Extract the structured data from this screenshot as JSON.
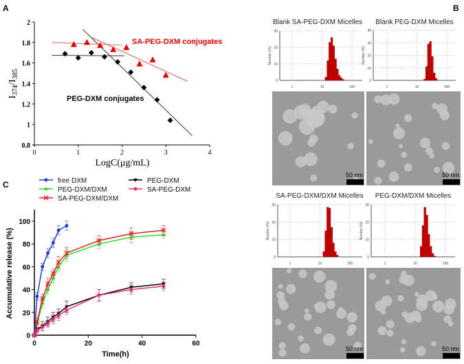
{
  "panel_labels": {
    "a": "A",
    "b": "B",
    "c": "C"
  },
  "chart_data": [
    {
      "id": "A",
      "type": "scatter",
      "xlabel": "LogC(μg/mL)",
      "ylabel_parts": [
        "I",
        "374",
        "/I",
        "385"
      ],
      "xlim": [
        0,
        4
      ],
      "ylim": [
        0.8,
        2
      ],
      "xticks": [
        "0",
        "1",
        "2",
        "3",
        "4"
      ],
      "yticks": [
        "0.8",
        "1",
        "1.2",
        "1.4",
        "1.6",
        "1.8",
        "2"
      ],
      "annotations": [
        "SA-PEG-DXM  conjugates",
        "PEG-DXM  conjugates"
      ],
      "series": [
        {
          "label_index": 1,
          "color": "#000000",
          "marker": "diamond",
          "x": [
            0.7,
            1.0,
            1.3,
            1.6,
            1.9,
            2.2,
            2.5,
            2.8,
            3.1
          ],
          "y": [
            1.69,
            1.65,
            1.7,
            1.66,
            1.61,
            1.51,
            1.36,
            1.24,
            1.04
          ],
          "fit_lines": [
            [
              [
                0.4,
                1.675
              ],
              [
                2.05,
                1.67
              ]
            ],
            [
              [
                1.1,
                1.93
              ],
              [
                3.6,
                0.89
              ]
            ]
          ],
          "line_color": "#333333"
        },
        {
          "label_index": 0,
          "color": "#e00000",
          "marker": "triangle",
          "x": [
            0.9,
            1.2,
            1.5,
            1.8,
            2.1,
            2.4,
            2.7,
            3.0
          ],
          "y": [
            1.78,
            1.8,
            1.77,
            1.73,
            1.75,
            1.59,
            1.63,
            1.48
          ],
          "fit_lines": [
            [
              [
                0.4,
                1.8
              ],
              [
                2.0,
                1.775
              ]
            ],
            [
              [
                1.3,
                1.85
              ],
              [
                3.5,
                1.42
              ]
            ]
          ],
          "line_color": "#e06060"
        }
      ]
    },
    {
      "id": "B",
      "type": "bar",
      "xscale": "log",
      "xlim": [
        0.4,
        230
      ],
      "xticks": [
        "1",
        "10",
        "100"
      ],
      "ylabel": "Number (%)",
      "scale_bar": "50 nm",
      "panels": [
        {
          "title": "Blank SA-PEG-DXM  Micelles",
          "ymax": 30,
          "yticks": [
            "0",
            "10",
            "20",
            "30"
          ],
          "sizes": [
            13.5,
            15.7,
            18.2,
            21,
            24.4,
            28.2,
            32.7,
            37.8,
            43.8,
            50.7
          ],
          "values": [
            2,
            12,
            23,
            26,
            21,
            13,
            7,
            3,
            1.5,
            0.5
          ]
        },
        {
          "title": "Blank  PEG-DXM  Micelles",
          "ymax": 40,
          "yticks": [
            "0",
            "10",
            "20",
            "30",
            "40"
          ],
          "sizes": [
            18.2,
            21,
            24.4,
            28.2,
            32.7,
            37.8,
            43.8
          ],
          "values": [
            1,
            11,
            29,
            31,
            19,
            6,
            1.5
          ]
        },
        {
          "title": "SA-PEG-DXM/DXM  Micelles",
          "ymax": 30,
          "yticks": [
            "0",
            "10",
            "20",
            "30"
          ],
          "sizes": [
            13.5,
            15.7,
            18.2,
            21,
            24.4,
            28.2,
            32.7,
            37.8
          ],
          "values": [
            3,
            15,
            28.5,
            28,
            17,
            8,
            3,
            1
          ]
        },
        {
          "title": "PEG-DXM/DXM   Micelles",
          "ymax": 30,
          "yticks": [
            "0",
            "10",
            "20",
            "30"
          ],
          "sizes": [
            15.7,
            18.2,
            21,
            24.4,
            28.2,
            32.7,
            37.8,
            43.8
          ],
          "values": [
            6,
            18,
            28.5,
            24,
            13,
            6,
            2,
            0.5
          ]
        }
      ]
    },
    {
      "id": "C",
      "type": "line",
      "xlabel": "Time(h)",
      "ylabel": "Accumulative release (%)",
      "xlim": [
        0,
        60
      ],
      "ylim": [
        0,
        100
      ],
      "xticks": [
        "0",
        "20",
        "40",
        "60"
      ],
      "yticks": [
        "0",
        "20",
        "40",
        "60",
        "80",
        "100"
      ],
      "legend_position": "top",
      "series": [
        {
          "name": "free DXM",
          "color": "#1f3fd0",
          "marker": "circle",
          "x": [
            0,
            1,
            3,
            5,
            7,
            9,
            12
          ],
          "y": [
            0,
            34,
            60,
            72,
            81,
            92,
            96
          ],
          "err": [
            1,
            3,
            3,
            4,
            4,
            4,
            4
          ]
        },
        {
          "name": "PEG-DXM/DXM",
          "color": "#33d633",
          "marker": "triangle",
          "x": [
            0,
            1,
            3,
            5,
            7,
            9,
            12,
            24,
            36,
            48
          ],
          "y": [
            0,
            10,
            28,
            40,
            50,
            60,
            70,
            80,
            86,
            88
          ],
          "err": [
            1,
            3,
            4,
            4,
            4,
            4,
            5,
            4,
            5,
            3
          ]
        },
        {
          "name": "SA-PEG-DXM/DXM",
          "color": "#e02020",
          "marker": "cross",
          "x": [
            0,
            1,
            3,
            5,
            7,
            9,
            12,
            24,
            36,
            48
          ],
          "y": [
            0,
            12,
            32,
            45,
            54,
            64,
            72,
            83,
            89,
            92
          ],
          "err": [
            1,
            3,
            4,
            5,
            4,
            5,
            5,
            4,
            5,
            4
          ]
        },
        {
          "name": "PEG-DXM",
          "color": "#000000",
          "marker": "triangle-down",
          "x": [
            0,
            1,
            3,
            5,
            7,
            9,
            12,
            24,
            36,
            48
          ],
          "y": [
            0,
            5,
            8,
            12,
            16,
            19,
            25,
            35,
            42,
            45
          ],
          "err": [
            1,
            2,
            4,
            4,
            4,
            4,
            5,
            5,
            4,
            4
          ]
        },
        {
          "name": "SA-PEG-DXM",
          "color": "#e0307a",
          "marker": "circle",
          "x": [
            0,
            1,
            3,
            5,
            7,
            9,
            12,
            24,
            36,
            48
          ],
          "y": [
            0,
            4,
            7,
            10,
            14,
            17,
            22,
            35,
            40,
            43
          ],
          "err": [
            1,
            2,
            3,
            3,
            4,
            4,
            4,
            5,
            4,
            4
          ]
        }
      ]
    }
  ]
}
